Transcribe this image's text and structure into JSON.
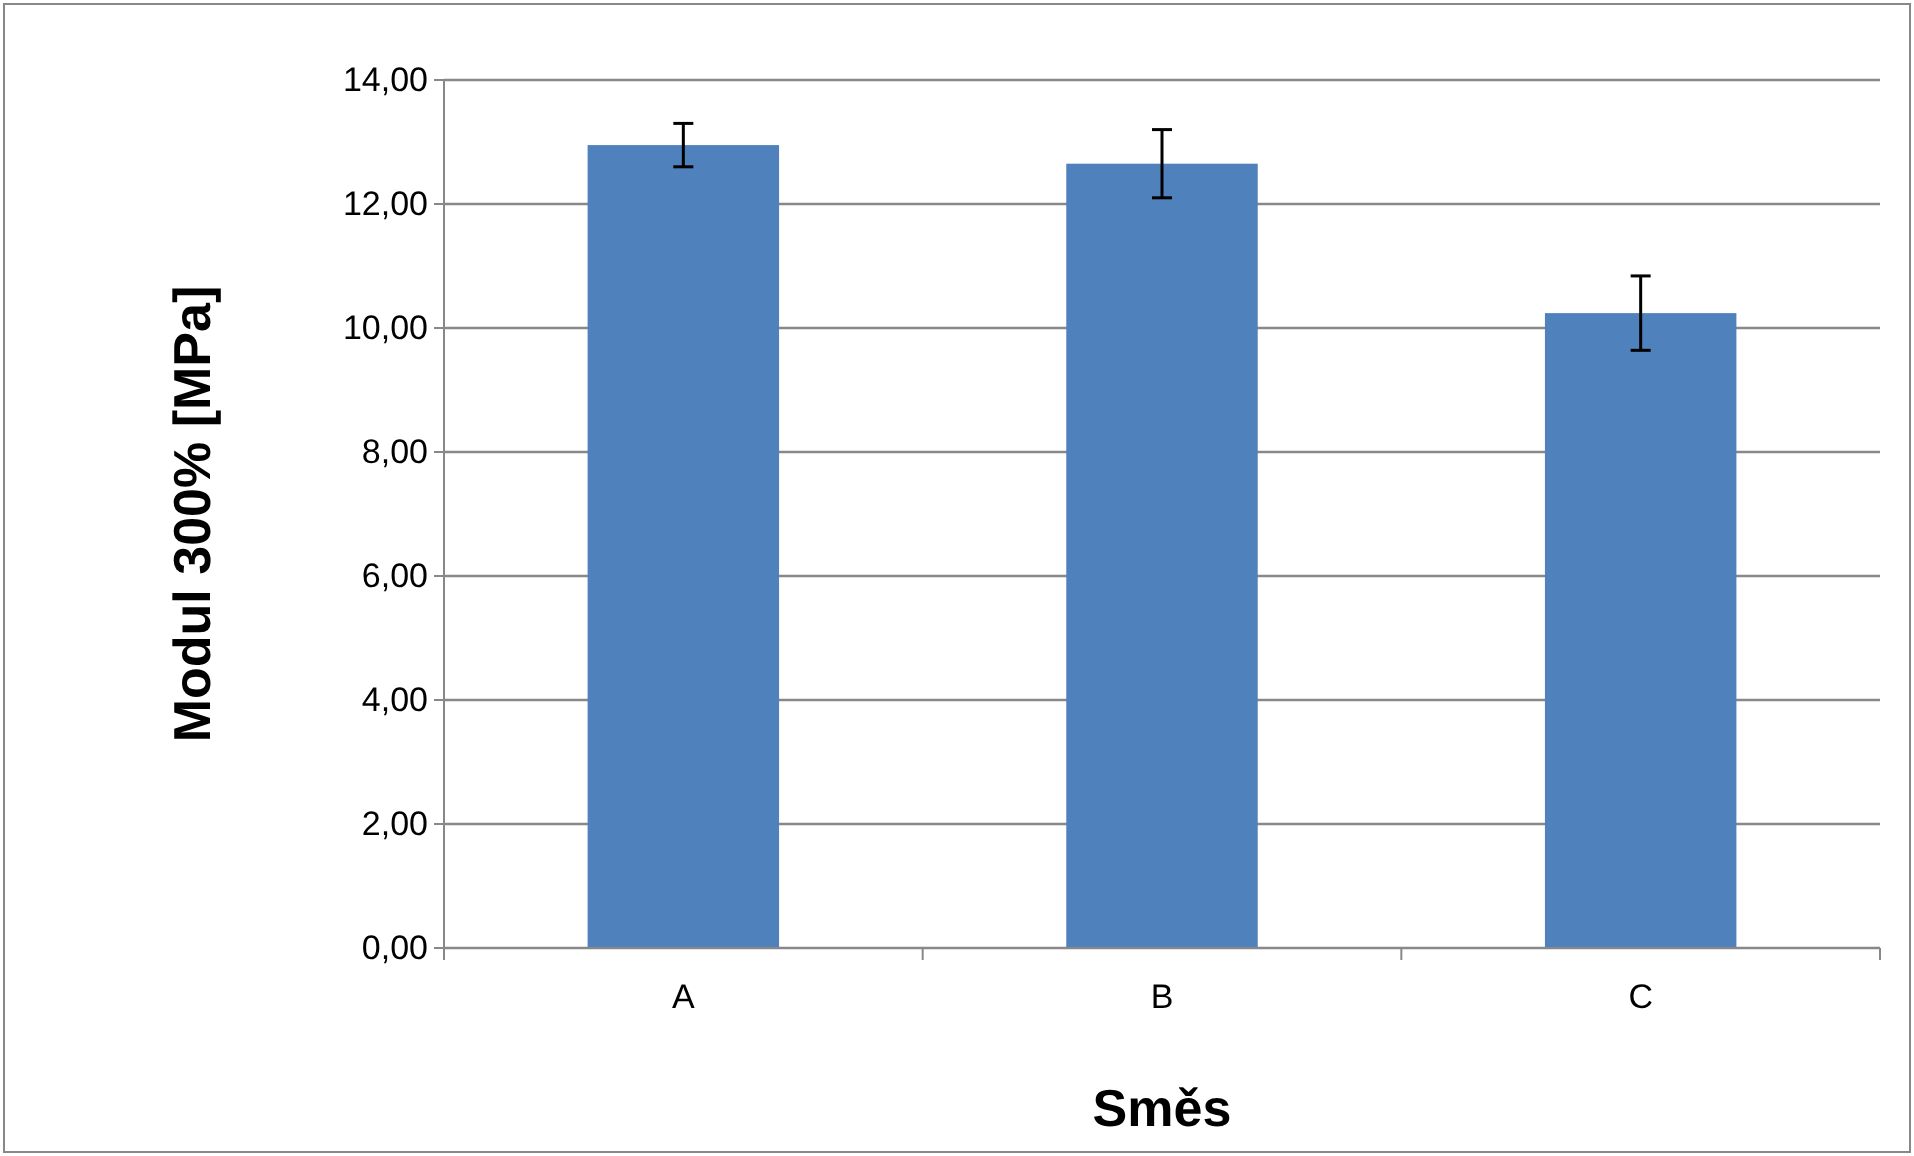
{
  "chart_data": {
    "type": "bar",
    "xlabel": "Směs",
    "ylabel": "Modul 300% [MPa]",
    "categories": [
      "A",
      "B",
      "C"
    ],
    "values": [
      12.95,
      12.65,
      10.24
    ],
    "errors": [
      0.35,
      0.55,
      0.6
    ],
    "color": "#4f81bd",
    "ylim": [
      0,
      14
    ],
    "yticks": [
      {
        "value": 0,
        "label": "0,00"
      },
      {
        "value": 2,
        "label": "2,00"
      },
      {
        "value": 4,
        "label": "4,00"
      },
      {
        "value": 6,
        "label": "6,00"
      },
      {
        "value": 8,
        "label": "8,00"
      },
      {
        "value": 10,
        "label": "10,00"
      },
      {
        "value": 12,
        "label": "12,00"
      },
      {
        "value": 14,
        "label": "14,00"
      }
    ],
    "grid": "y"
  }
}
